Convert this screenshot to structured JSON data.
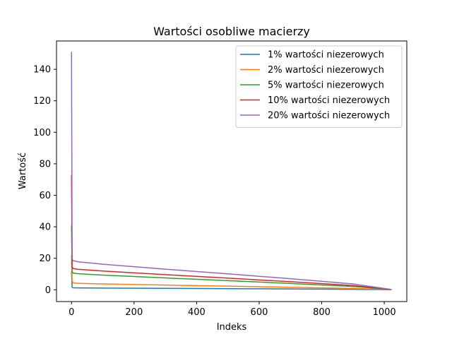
{
  "chart_data": {
    "type": "line",
    "title": "Wartości osobliwe macierzy",
    "xlabel": "Indeks",
    "ylabel": "Wartość",
    "xlim": [
      -48,
      1072
    ],
    "ylim": [
      -7.5,
      158
    ],
    "xticks": [
      0,
      200,
      400,
      600,
      800,
      1000
    ],
    "yticks": [
      0,
      20,
      40,
      60,
      80,
      100,
      120,
      140
    ],
    "legend_position": "top-right",
    "grid": false,
    "series": [
      {
        "name": "1% wartości niezerowych",
        "color": "#1f77b4",
        "points": [
          [
            0,
            11.5
          ],
          [
            2,
            1.6
          ],
          [
            5,
            1.25
          ],
          [
            20,
            1.2
          ],
          [
            100,
            1.1
          ],
          [
            300,
            0.9
          ],
          [
            500,
            0.7
          ],
          [
            700,
            0.5
          ],
          [
            900,
            0.28
          ],
          [
            1023,
            0.02
          ]
        ]
      },
      {
        "name": "2% wartości niezerowych",
        "color": "#ff7f0e",
        "points": [
          [
            0,
            22
          ],
          [
            2,
            5.5
          ],
          [
            5,
            4.4
          ],
          [
            20,
            4.1
          ],
          [
            100,
            3.7
          ],
          [
            300,
            3.0
          ],
          [
            500,
            2.3
          ],
          [
            700,
            1.6
          ],
          [
            900,
            0.85
          ],
          [
            1023,
            0.05
          ]
        ]
      },
      {
        "name": "5% wartości niezerowych",
        "color": "#2ca02c",
        "points": [
          [
            0,
            41
          ],
          [
            2,
            11.5
          ],
          [
            5,
            10.6
          ],
          [
            20,
            10.2
          ],
          [
            100,
            9.3
          ],
          [
            300,
            7.5
          ],
          [
            500,
            5.8
          ],
          [
            700,
            4.0
          ],
          [
            900,
            2.1
          ],
          [
            1023,
            0.1
          ]
        ]
      },
      {
        "name": "10% wartości niezerowych",
        "color": "#d62728",
        "points": [
          [
            0,
            73
          ],
          [
            2,
            14.5
          ],
          [
            5,
            13.5
          ],
          [
            20,
            13.0
          ],
          [
            100,
            11.9
          ],
          [
            300,
            9.6
          ],
          [
            500,
            7.4
          ],
          [
            700,
            5.1
          ],
          [
            900,
            2.7
          ],
          [
            1023,
            0.15
          ]
        ]
      },
      {
        "name": "20% wartości niezerowych",
        "color": "#9467bd",
        "points": [
          [
            0,
            151
          ],
          [
            2,
            19.5
          ],
          [
            5,
            18.5
          ],
          [
            20,
            17.8
          ],
          [
            100,
            16.2
          ],
          [
            300,
            13.1
          ],
          [
            500,
            10.1
          ],
          [
            700,
            7.0
          ],
          [
            900,
            3.7
          ],
          [
            1023,
            0.2
          ]
        ]
      }
    ]
  }
}
